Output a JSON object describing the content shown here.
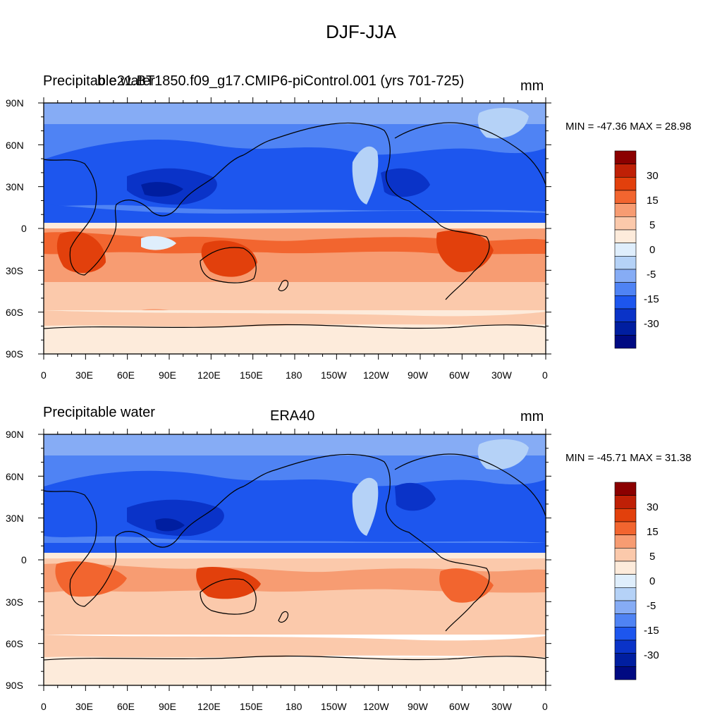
{
  "figure": {
    "title": "DJF-JJA"
  },
  "panels": [
    {
      "left_title": "Precipitable water",
      "center_title": "b.e21.BT1850.f09_g17.CMIP6-piControl.001 (yrs 701-725)",
      "units": "mm",
      "min_max": "MIN = -47.36 MAX =  28.98"
    },
    {
      "left_title": "Precipitable water",
      "center_title": "ERA40",
      "units": "mm",
      "min_max": "MIN = -45.71 MAX =  31.38"
    }
  ],
  "lat_labels": [
    "90N",
    "60N",
    "30N",
    "0",
    "30S",
    "60S",
    "90S"
  ],
  "lon_labels": [
    "0",
    "30E",
    "60E",
    "90E",
    "120E",
    "150E",
    "180",
    "150W",
    "120W",
    "90W",
    "60W",
    "30W",
    "0"
  ],
  "colorbar": {
    "labels": [
      "30",
      "15",
      "5",
      "0",
      "-5",
      "-15",
      "-30"
    ],
    "colors": [
      "#8b0000",
      "#bf2006",
      "#e2400c",
      "#f2652f",
      "#f79c72",
      "#fbc9ab",
      "#fdebdb",
      "#dfeefc",
      "#b5d2f7",
      "#86acf5",
      "#4f83f4",
      "#1d56ee",
      "#0a33c8",
      "#001ea0",
      "#000a82"
    ]
  },
  "chart_data": {
    "type": "heatmap",
    "title": "DJF-JJA",
    "variable": "Precipitable water",
    "units": "mm",
    "panels": [
      {
        "name": "b.e21.BT1850.f09_g17.CMIP6-piControl.001 (yrs 701-725)",
        "min": -47.36,
        "max": 28.98
      },
      {
        "name": "ERA40",
        "min": -45.71,
        "max": 31.38
      }
    ],
    "x_ticks": [
      "0",
      "30E",
      "60E",
      "90E",
      "120E",
      "150E",
      "180",
      "150W",
      "120W",
      "90W",
      "60W",
      "30W",
      "0"
    ],
    "y_ticks": [
      "90N",
      "60N",
      "30N",
      "0",
      "30S",
      "60S",
      "90S"
    ],
    "colorbar_ticks": [
      30,
      15,
      5,
      0,
      -5,
      -15,
      -30
    ]
  }
}
